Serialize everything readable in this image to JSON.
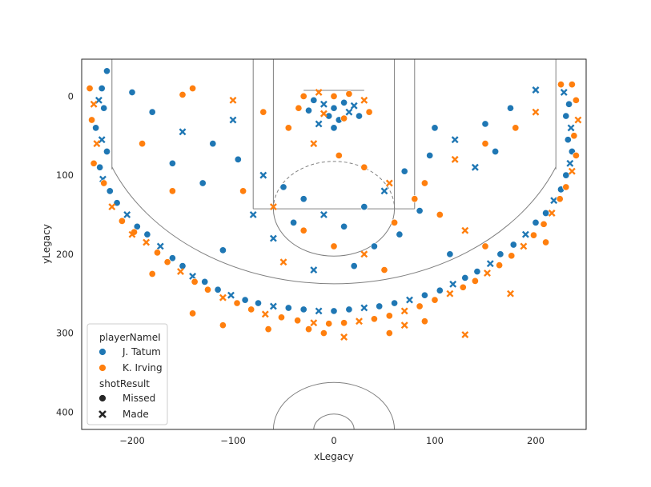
{
  "chart_data": {
    "type": "scatter",
    "title": "",
    "xlabel": "xLegacy",
    "ylabel": "yLegacy",
    "xlim": [
      -250,
      250
    ],
    "ylim": [
      422,
      -47
    ],
    "y_inverted": true,
    "grid": false,
    "xticks": [
      -200,
      -100,
      0,
      100,
      200
    ],
    "xtick_labels": [
      "−200",
      "−100",
      "0",
      "100",
      "200"
    ],
    "yticks": [
      0,
      100,
      200,
      300,
      400
    ],
    "ytick_labels": [
      "0",
      "100",
      "200",
      "300",
      "400"
    ],
    "legend": {
      "position": "lower-left",
      "hue_title": "playerNameI",
      "hue_entries": [
        {
          "name": "J. Tatum",
          "color": "#1f77b4"
        },
        {
          "name": "K. Irving",
          "color": "#ff7f0e"
        }
      ],
      "style_title": "shotResult",
      "style_entries": [
        {
          "name": "Missed",
          "marker": "circle"
        },
        {
          "name": "Made",
          "marker": "x"
        }
      ]
    },
    "series": [
      {
        "name": "J. Tatum",
        "color": "#1f77b4",
        "points": [
          [
            -225,
            -32,
            "m"
          ],
          [
            -230,
            -10,
            "m"
          ],
          [
            -233,
            5,
            "M"
          ],
          [
            -228,
            15,
            "m"
          ],
          [
            -236,
            40,
            "m"
          ],
          [
            -230,
            55,
            "M"
          ],
          [
            -225,
            70,
            "m"
          ],
          [
            -232,
            90,
            "m"
          ],
          [
            -229,
            105,
            "M"
          ],
          [
            -222,
            120,
            "m"
          ],
          [
            -215,
            135,
            "m"
          ],
          [
            -205,
            150,
            "M"
          ],
          [
            -195,
            165,
            "m"
          ],
          [
            -185,
            175,
            "m"
          ],
          [
            -172,
            190,
            "M"
          ],
          [
            -160,
            205,
            "m"
          ],
          [
            -150,
            215,
            "m"
          ],
          [
            -140,
            228,
            "M"
          ],
          [
            -128,
            235,
            "m"
          ],
          [
            -115,
            245,
            "m"
          ],
          [
            -102,
            252,
            "M"
          ],
          [
            -88,
            258,
            "m"
          ],
          [
            -75,
            262,
            "m"
          ],
          [
            -60,
            266,
            "M"
          ],
          [
            -45,
            268,
            "m"
          ],
          [
            -30,
            270,
            "m"
          ],
          [
            -15,
            272,
            "M"
          ],
          [
            0,
            272,
            "m"
          ],
          [
            15,
            270,
            "m"
          ],
          [
            30,
            268,
            "M"
          ],
          [
            45,
            266,
            "m"
          ],
          [
            60,
            262,
            "m"
          ],
          [
            75,
            258,
            "M"
          ],
          [
            90,
            252,
            "m"
          ],
          [
            105,
            246,
            "m"
          ],
          [
            118,
            238,
            "M"
          ],
          [
            130,
            230,
            "m"
          ],
          [
            142,
            222,
            "m"
          ],
          [
            155,
            212,
            "M"
          ],
          [
            165,
            200,
            "m"
          ],
          [
            178,
            188,
            "m"
          ],
          [
            190,
            175,
            "M"
          ],
          [
            200,
            160,
            "m"
          ],
          [
            210,
            148,
            "m"
          ],
          [
            218,
            132,
            "M"
          ],
          [
            225,
            118,
            "m"
          ],
          [
            230,
            100,
            "m"
          ],
          [
            234,
            85,
            "M"
          ],
          [
            236,
            70,
            "m"
          ],
          [
            232,
            55,
            "m"
          ],
          [
            235,
            40,
            "M"
          ],
          [
            230,
            25,
            "m"
          ],
          [
            233,
            10,
            "m"
          ],
          [
            228,
            -5,
            "M"
          ],
          [
            -180,
            20,
            "m"
          ],
          [
            -150,
            45,
            "M"
          ],
          [
            -120,
            60,
            "m"
          ],
          [
            -95,
            80,
            "m"
          ],
          [
            -70,
            100,
            "M"
          ],
          [
            -50,
            115,
            "m"
          ],
          [
            -30,
            130,
            "m"
          ],
          [
            -10,
            150,
            "M"
          ],
          [
            10,
            165,
            "m"
          ],
          [
            30,
            140,
            "m"
          ],
          [
            50,
            120,
            "M"
          ],
          [
            70,
            95,
            "m"
          ],
          [
            95,
            75,
            "m"
          ],
          [
            120,
            55,
            "M"
          ],
          [
            150,
            35,
            "m"
          ],
          [
            175,
            15,
            "m"
          ],
          [
            -20,
            5,
            "m"
          ],
          [
            -10,
            10,
            "M"
          ],
          [
            0,
            15,
            "m"
          ],
          [
            10,
            8,
            "m"
          ],
          [
            20,
            12,
            "M"
          ],
          [
            -5,
            25,
            "m"
          ],
          [
            5,
            30,
            "m"
          ],
          [
            15,
            20,
            "M"
          ],
          [
            -25,
            18,
            "m"
          ],
          [
            25,
            25,
            "m"
          ],
          [
            -15,
            35,
            "M"
          ],
          [
            0,
            40,
            "m"
          ],
          [
            -40,
            160,
            "m"
          ],
          [
            -60,
            180,
            "M"
          ],
          [
            40,
            190,
            "m"
          ],
          [
            65,
            175,
            "m"
          ],
          [
            -80,
            150,
            "M"
          ],
          [
            85,
            145,
            "m"
          ],
          [
            -130,
            110,
            "m"
          ],
          [
            140,
            90,
            "M"
          ],
          [
            -160,
            85,
            "m"
          ],
          [
            160,
            70,
            "m"
          ],
          [
            -100,
            30,
            "M"
          ],
          [
            100,
            40,
            "m"
          ],
          [
            -200,
            -5,
            "m"
          ],
          [
            200,
            -8,
            "M"
          ],
          [
            -110,
            195,
            "m"
          ],
          [
            115,
            200,
            "m"
          ],
          [
            -20,
            220,
            "M"
          ],
          [
            20,
            215,
            "m"
          ]
        ]
      },
      {
        "name": "K. Irving",
        "color": "#ff7f0e",
        "points": [
          [
            -242,
            -10,
            "m"
          ],
          [
            -238,
            10,
            "M"
          ],
          [
            -240,
            30,
            "m"
          ],
          [
            -235,
            60,
            "M"
          ],
          [
            -238,
            85,
            "m"
          ],
          [
            -228,
            110,
            "m"
          ],
          [
            -220,
            140,
            "M"
          ],
          [
            -210,
            158,
            "m"
          ],
          [
            -198,
            172,
            "m"
          ],
          [
            -186,
            185,
            "M"
          ],
          [
            -175,
            198,
            "m"
          ],
          [
            -165,
            210,
            "m"
          ],
          [
            -152,
            222,
            "M"
          ],
          [
            -138,
            235,
            "m"
          ],
          [
            -125,
            245,
            "m"
          ],
          [
            -110,
            255,
            "M"
          ],
          [
            -96,
            262,
            "m"
          ],
          [
            -82,
            270,
            "m"
          ],
          [
            -68,
            276,
            "M"
          ],
          [
            -52,
            280,
            "m"
          ],
          [
            -36,
            284,
            "m"
          ],
          [
            -20,
            287,
            "M"
          ],
          [
            -5,
            288,
            "m"
          ],
          [
            10,
            287,
            "m"
          ],
          [
            25,
            285,
            "M"
          ],
          [
            40,
            282,
            "m"
          ],
          [
            55,
            278,
            "m"
          ],
          [
            70,
            272,
            "M"
          ],
          [
            85,
            266,
            "m"
          ],
          [
            100,
            258,
            "m"
          ],
          [
            115,
            250,
            "M"
          ],
          [
            128,
            242,
            "m"
          ],
          [
            140,
            234,
            "m"
          ],
          [
            152,
            224,
            "M"
          ],
          [
            164,
            214,
            "m"
          ],
          [
            176,
            202,
            "m"
          ],
          [
            188,
            190,
            "M"
          ],
          [
            198,
            176,
            "m"
          ],
          [
            208,
            162,
            "m"
          ],
          [
            216,
            148,
            "M"
          ],
          [
            224,
            130,
            "m"
          ],
          [
            230,
            115,
            "m"
          ],
          [
            236,
            95,
            "M"
          ],
          [
            240,
            75,
            "m"
          ],
          [
            238,
            50,
            "m"
          ],
          [
            242,
            30,
            "M"
          ],
          [
            240,
            5,
            "m"
          ],
          [
            236,
            -15,
            "m"
          ],
          [
            -140,
            -10,
            "m"
          ],
          [
            -100,
            5,
            "M"
          ],
          [
            -70,
            20,
            "m"
          ],
          [
            -45,
            40,
            "m"
          ],
          [
            -20,
            60,
            "M"
          ],
          [
            5,
            75,
            "m"
          ],
          [
            30,
            90,
            "m"
          ],
          [
            55,
            110,
            "M"
          ],
          [
            80,
            130,
            "m"
          ],
          [
            105,
            150,
            "m"
          ],
          [
            130,
            170,
            "M"
          ],
          [
            150,
            190,
            "m"
          ],
          [
            -30,
            0,
            "m"
          ],
          [
            -15,
            -5,
            "M"
          ],
          [
            0,
            0,
            "m"
          ],
          [
            15,
            -3,
            "m"
          ],
          [
            30,
            5,
            "M"
          ],
          [
            -35,
            15,
            "m"
          ],
          [
            35,
            20,
            "m"
          ],
          [
            -10,
            22,
            "M"
          ],
          [
            10,
            28,
            "m"
          ],
          [
            -90,
            120,
            "m"
          ],
          [
            -60,
            140,
            "M"
          ],
          [
            -30,
            170,
            "m"
          ],
          [
            0,
            190,
            "m"
          ],
          [
            30,
            200,
            "M"
          ],
          [
            60,
            160,
            "m"
          ],
          [
            90,
            110,
            "m"
          ],
          [
            120,
            80,
            "M"
          ],
          [
            150,
            60,
            "m"
          ],
          [
            180,
            40,
            "m"
          ],
          [
            200,
            20,
            "M"
          ],
          [
            -190,
            60,
            "m"
          ],
          [
            -160,
            120,
            "m"
          ],
          [
            -50,
            210,
            "M"
          ],
          [
            50,
            220,
            "m"
          ],
          [
            -10,
            300,
            "m"
          ],
          [
            10,
            305,
            "M"
          ],
          [
            -25,
            295,
            "m"
          ],
          [
            55,
            300,
            "m"
          ],
          [
            130,
            302,
            "M"
          ],
          [
            -140,
            275,
            "m"
          ],
          [
            -180,
            225,
            "m"
          ],
          [
            175,
            250,
            "M"
          ],
          [
            -110,
            290,
            "m"
          ],
          [
            90,
            285,
            "m"
          ],
          [
            -200,
            175,
            "M"
          ],
          [
            210,
            185,
            "m"
          ],
          [
            -65,
            295,
            "m"
          ],
          [
            70,
            290,
            "M"
          ],
          [
            -150,
            -2,
            "m"
          ],
          [
            225,
            -15,
            "m"
          ]
        ]
      }
    ]
  }
}
